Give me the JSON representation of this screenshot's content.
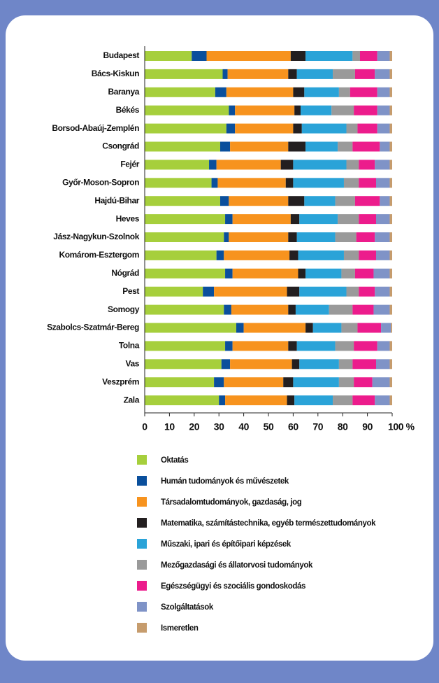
{
  "chart_data": {
    "type": "stacked-bar-horizontal",
    "categories": [
      "Budapest",
      "Bács-Kiskun",
      "Baranya",
      "Békés",
      "Borsod-Abaúj-Zemplén",
      "Csongrád",
      "Fejér",
      "Győr-Moson-Sopron",
      "Hajdú-Bihar",
      "Heves",
      "Jász-Nagykun-Szolnok",
      "Komárom-Esztergom",
      "Nógrád",
      "Pest",
      "Somogy",
      "Szabolcs-Szatmár-Bereg",
      "Tolna",
      "Vas",
      "Veszprém",
      "Zala"
    ],
    "series": [
      {
        "name": "Oktatás",
        "color": "#a6cf3c",
        "values": [
          19,
          31.5,
          28.5,
          34,
          33,
          30.5,
          26,
          27,
          30.5,
          32.5,
          32,
          29,
          32.5,
          23.5,
          32,
          37,
          32.5,
          31,
          28,
          30
        ]
      },
      {
        "name": "Humán tudományok és művészetek",
        "color": "#0a4f9c",
        "values": [
          6,
          2,
          4.5,
          2.5,
          3.5,
          4,
          3,
          2.5,
          3.5,
          3,
          2,
          3,
          3,
          4.5,
          3,
          3,
          3,
          3.5,
          4,
          2.5
        ]
      },
      {
        "name": "Társadalomtudományok, gazdaság, jog",
        "color": "#f7931e",
        "values": [
          34,
          24.5,
          27,
          24,
          23.5,
          23.5,
          26,
          27.5,
          24,
          23.5,
          24,
          26.5,
          26.5,
          29.5,
          23,
          25,
          22.5,
          25,
          24,
          25
        ]
      },
      {
        "name": "Matematika, számítástechnika, egyéb természettudományok",
        "color": "#231f20",
        "values": [
          6,
          3.5,
          4.5,
          2.5,
          3.5,
          7,
          5,
          3,
          6.5,
          3.5,
          3.5,
          3.5,
          3,
          5,
          3,
          3,
          3.5,
          3,
          4,
          3
        ]
      },
      {
        "name": "Műszaki, ipari és építőipari képzések",
        "color": "#2aa3d8",
        "values": [
          19,
          14.5,
          14,
          12.5,
          18,
          13,
          21.5,
          20.5,
          12.5,
          15.5,
          15.5,
          18.5,
          14.5,
          19,
          13.5,
          11.5,
          15.5,
          16,
          18.5,
          15.5
        ]
      },
      {
        "name": "Mezőgazdasági és állatorvosi tudományok",
        "color": "#9a9a9a",
        "values": [
          3,
          9,
          4.5,
          9,
          4.5,
          6,
          5,
          6,
          8,
          8.5,
          8.5,
          6,
          5.5,
          5,
          9.5,
          6.5,
          7.5,
          5.5,
          6,
          8
        ]
      },
      {
        "name": "Egészségügyi és szociális gondoskodás",
        "color": "#ec1c8c",
        "values": [
          7,
          8,
          11,
          9.5,
          8,
          11,
          6.5,
          7,
          10,
          7,
          7.5,
          7,
          7.5,
          6.5,
          8.5,
          9.5,
          9.5,
          9.5,
          7.5,
          9
        ]
      },
      {
        "name": "Szolgáltatások",
        "color": "#7f93c7",
        "values": [
          5,
          6,
          5,
          5,
          5,
          4,
          6,
          5.5,
          4,
          5.5,
          6,
          5.5,
          6.5,
          6,
          6.5,
          4,
          5,
          5.5,
          7,
          6
        ]
      },
      {
        "name": "Ismeretlen",
        "color": "#c69c6d",
        "values": [
          1,
          1,
          1,
          1,
          1,
          1,
          1,
          1,
          1,
          1,
          1,
          1,
          1,
          1,
          1,
          0.5,
          1,
          1,
          1,
          1
        ]
      }
    ],
    "xlim": [
      0,
      100
    ],
    "xticks": [
      0,
      10,
      20,
      30,
      40,
      50,
      60,
      70,
      80,
      90,
      {
        "value": 100,
        "label": "100 %"
      }
    ]
  }
}
